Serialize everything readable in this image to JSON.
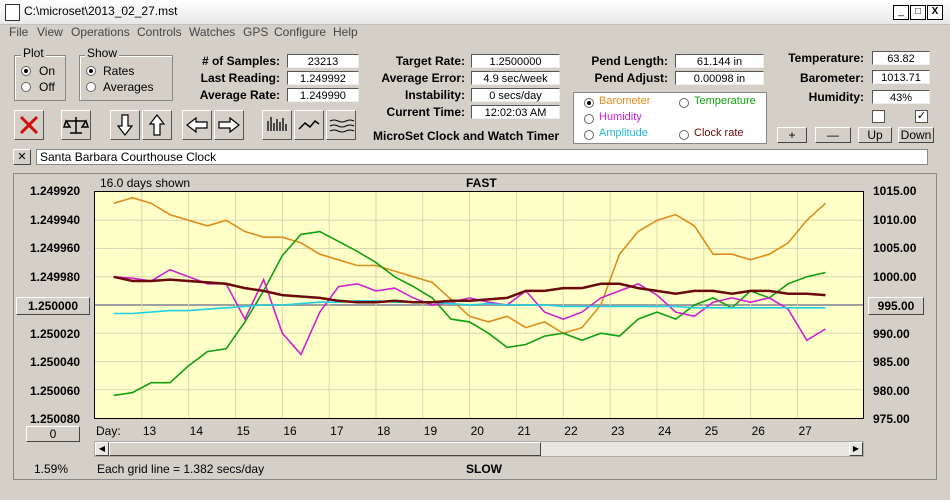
{
  "window": {
    "title": "C:\\microset\\2013_02_27.mst",
    "min_label": "_",
    "max_label": "□",
    "close_label": "X"
  },
  "menu": [
    "File",
    "View",
    "Operations",
    "Controls",
    "Watches",
    "GPS",
    "Configure",
    "Help"
  ],
  "plot_group": {
    "label": "Plot",
    "on": "On",
    "off": "Off",
    "selected": "On"
  },
  "show_group": {
    "label": "Show",
    "rates": "Rates",
    "averages": "Averages",
    "selected": "Rates"
  },
  "stats": {
    "samples_label": "# of Samples:",
    "samples": "23213",
    "last_label": "Last Reading:",
    "last": "1.249992",
    "avg_label": "Average Rate:",
    "avg": "1.249990",
    "target_label": "Target Rate:",
    "target": "1.2500000",
    "avg_err_label": "Average Error:",
    "avg_err": "4.9 sec/week",
    "instab_label": "Instability:",
    "instab": "0 secs/day",
    "time_label": "Current Time:",
    "time": "12:02:03 AM",
    "pend_len_label": "Pend Length:",
    "pend_len": "61.144 in",
    "pend_adj_label": "Pend Adjust:",
    "pend_adj": "0.00098 in",
    "temp_label": "Temperature:",
    "temp": "63.82",
    "baro_label": "Barometer:",
    "baro": "1013.71",
    "hum_label": "Humidity:",
    "hum": "43%"
  },
  "app_label": "MicroSet Clock and Watch Timer",
  "legend": {
    "barometer": "Barometer",
    "temperature": "Temperature",
    "humidity": "Humidity",
    "amplitude": "Amplitude",
    "clock_rate": "Clock rate",
    "selected": "Barometer"
  },
  "scale_buttons": {
    "plus": "+",
    "minus": "—",
    "up": "Up",
    "down": "Down"
  },
  "clock_name": "Santa Barbara Courthouse Clock",
  "clock_name_close": "✕",
  "chart_header": {
    "days_shown": "16.0 days shown",
    "fast": "FAST",
    "slow": "SLOW",
    "grid_note": "Each grid line = 1.382 secs/day",
    "percent": "1.59%",
    "day_label": "Day:",
    "left_button": "0"
  },
  "colors": {
    "barometer": "#e08c1e",
    "temperature": "#10a010",
    "humidity": "#d020d0",
    "amplitude": "#20d0e0",
    "clock_rate": "#6a0a0a",
    "plot_bg": "#ffffc8"
  },
  "chart_data": {
    "type": "line",
    "x": [
      12.4,
      12.8,
      13.2,
      13.6,
      14.0,
      14.4,
      14.8,
      15.2,
      15.6,
      16.0,
      16.4,
      16.8,
      17.2,
      17.6,
      18.0,
      18.4,
      18.8,
      19.2,
      19.6,
      20.0,
      20.4,
      20.8,
      21.2,
      21.6,
      22.0,
      22.4,
      22.8,
      23.2,
      23.6,
      24.0,
      24.4,
      24.8,
      25.2,
      25.6,
      26.0,
      26.4,
      26.8,
      27.2,
      27.6
    ],
    "ylim_left": [
      1.25008,
      1.24992
    ],
    "ylim_right": [
      975,
      1015
    ],
    "left_ticks": [
      "1.249920",
      "1.249940",
      "1.249960",
      "1.249980",
      "1.250000",
      "1.250020",
      "1.250040",
      "1.250060",
      "1.250080"
    ],
    "right_ticks": [
      "1015.00",
      "1010.00",
      "1005.00",
      "1000.00",
      "995.00",
      "990.00",
      "985.00",
      "980.00",
      "975.00"
    ],
    "x_ticks": [
      "13",
      "14",
      "15",
      "16",
      "17",
      "18",
      "19",
      "20",
      "21",
      "22",
      "23",
      "24",
      "25",
      "26",
      "27"
    ],
    "left_marker": "1.250000",
    "right_marker": "995.00",
    "series": [
      {
        "name": "Barometer",
        "axis": "right",
        "values": [
          1013,
          1014,
          1013,
          1011,
          1010,
          1009,
          1010,
          1008,
          1007,
          1007,
          1006,
          1004,
          1003,
          1002,
          1002,
          1001,
          1000,
          999,
          996,
          993,
          992,
          993,
          991,
          992,
          990,
          991,
          995,
          1004,
          1008,
          1010,
          1011,
          1009,
          1004,
          1004,
          1003,
          1004,
          1006,
          1010,
          1013
        ]
      },
      {
        "name": "Temperature",
        "axis": "left",
        "values": [
          1.250064,
          1.250062,
          1.250055,
          1.250055,
          1.250043,
          1.250033,
          1.250031,
          1.250012,
          1.24999,
          1.249965,
          1.24995,
          1.249948,
          1.249955,
          1.249962,
          1.24997,
          1.24998,
          1.249987,
          1.249995,
          1.25001,
          1.250012,
          1.25002,
          1.25003,
          1.250028,
          1.250022,
          1.25002,
          1.250025,
          1.25002,
          1.250022,
          1.25001,
          1.250005,
          1.25001,
          1.25,
          1.249995,
          1.250002,
          1.24999,
          1.249995,
          1.249985,
          1.24998,
          1.249977
        ]
      },
      {
        "name": "Humidity",
        "axis": "left",
        "values": [
          1.24998,
          1.249981,
          1.249983,
          1.249975,
          1.24998,
          1.249985,
          1.249985,
          1.25001,
          1.249982,
          1.25002,
          1.250035,
          1.250005,
          1.249987,
          1.249985,
          1.24999,
          1.249988,
          1.249995,
          1.25,
          1.249998,
          1.249995,
          1.249998,
          1.25,
          1.24999,
          1.250005,
          1.25001,
          1.250005,
          1.249995,
          1.24999,
          1.249985,
          1.249993,
          1.250005,
          1.250008,
          1.249998,
          1.249995,
          1.249998,
          1.249995,
          1.250003,
          1.250025,
          1.250017
        ]
      },
      {
        "name": "Amplitude",
        "axis": "left",
        "values": [
          1.250006,
          1.250006,
          1.250005,
          1.250004,
          1.250004,
          1.250003,
          1.250002,
          1.250001,
          1.25,
          1.25,
          1.249999,
          1.249998,
          1.249998,
          1.249997,
          1.249997,
          1.249998,
          1.249998,
          1.249998,
          1.249999,
          1.25,
          1.249999,
          1.25,
          1.25,
          1.25,
          1.250001,
          1.250001,
          1.250001,
          1.250001,
          1.250001,
          1.250001,
          1.250001,
          1.250002,
          1.250002,
          1.250002,
          1.250002,
          1.250002,
          1.250002,
          1.250002,
          1.250002
        ]
      },
      {
        "name": "Clock rate",
        "axis": "left",
        "values": [
          1.24998,
          1.249983,
          1.249983,
          1.249982,
          1.249983,
          1.249984,
          1.249985,
          1.249988,
          1.24999,
          1.249993,
          1.249994,
          1.249995,
          1.249997,
          1.249998,
          1.249998,
          1.249997,
          1.249998,
          1.249998,
          1.249997,
          1.249997,
          1.249996,
          1.249995,
          1.24999,
          1.24999,
          1.249988,
          1.249988,
          1.249985,
          1.249985,
          1.249988,
          1.24999,
          1.249992,
          1.24999,
          1.24999,
          1.249992,
          1.24999,
          1.24999,
          1.249992,
          1.249992,
          1.249993
        ]
      }
    ]
  }
}
